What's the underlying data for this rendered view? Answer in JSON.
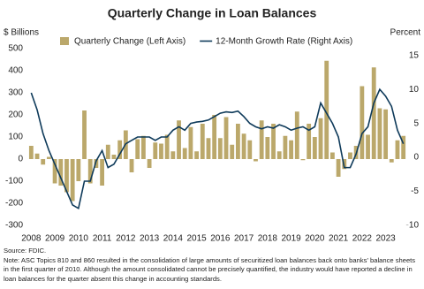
{
  "chart_data": {
    "type": "bar-line",
    "title": "Quarterly Change in Loan Balances",
    "y_label": "$ Billions",
    "y2_label": "Percent",
    "categories": [
      "2008",
      null,
      null,
      null,
      "2009",
      null,
      null,
      null,
      "2010",
      null,
      null,
      null,
      "2011",
      null,
      null,
      null,
      "2012",
      null,
      null,
      null,
      "2013",
      null,
      null,
      null,
      "2014",
      null,
      null,
      null,
      "2015",
      null,
      null,
      null,
      "2016",
      null,
      null,
      null,
      "2017",
      null,
      null,
      null,
      "2018",
      null,
      null,
      null,
      "2019",
      null,
      null,
      null,
      "2020",
      null,
      null,
      null,
      "2021",
      null,
      null,
      null,
      "2022",
      null,
      null,
      null,
      "2023",
      null,
      null,
      null
    ],
    "series": [
      {
        "name": "Quarterly Change (Left Axis)",
        "type": "bar",
        "color": "#bba86b",
        "values": [
          60,
          25,
          -25,
          10,
          -110,
          -120,
          -150,
          -190,
          -100,
          220,
          -110,
          -40,
          -120,
          65,
          20,
          85,
          130,
          -60,
          90,
          105,
          -40,
          75,
          70,
          110,
          35,
          175,
          50,
          145,
          35,
          160,
          95,
          200,
          95,
          190,
          65,
          160,
          115,
          85,
          -10,
          175,
          100,
          160,
          35,
          105,
          85,
          215,
          -5,
          160,
          100,
          185,
          445,
          30,
          -80,
          -45,
          30,
          60,
          330,
          110,
          415,
          230,
          225,
          -15,
          85,
          105
        ]
      },
      {
        "name": "12-Month Growth Rate (Right Axis)",
        "type": "line",
        "axis": "y2",
        "color": "#0e3a5a",
        "values": [
          9.5,
          7,
          3.5,
          1,
          -1,
          -3,
          -5,
          -7,
          -7.5,
          -3.5,
          -3.5,
          -0.5,
          1,
          -1.5,
          -1,
          0.5,
          2,
          2.5,
          3,
          3,
          3,
          2.5,
          3,
          3,
          4,
          4.5,
          4,
          5,
          5.2,
          5.3,
          5.5,
          6,
          6.5,
          6.7,
          6.6,
          6.8,
          6,
          5,
          4.5,
          4.2,
          4.5,
          4.3,
          4.8,
          4.5,
          4,
          4.3,
          4.5,
          4,
          4.5,
          8,
          6.5,
          5,
          3,
          -1.5,
          -1.5,
          0.5,
          3.5,
          4.5,
          8,
          10,
          9,
          7.5,
          4,
          2
        ]
      }
    ],
    "ylim": [
      -300,
      500
    ],
    "yticks": [
      -300,
      -200,
      -100,
      0,
      100,
      200,
      300,
      400,
      500
    ],
    "y2lim": [
      -10,
      16
    ],
    "y2ticks": [
      -10,
      -5,
      0,
      5,
      10,
      15
    ],
    "source": "Source: FDIC.",
    "note": "Note: ASC Topics 810 and 860 resulted in the consolidation of large amounts of securitized loan balances back onto banks' balance sheets in the first quarter of 2010. Although the amount consolidated cannot be precisely quantified, the industry would have reported a decline in loan balances for the quarter absent this change in accounting standards."
  }
}
